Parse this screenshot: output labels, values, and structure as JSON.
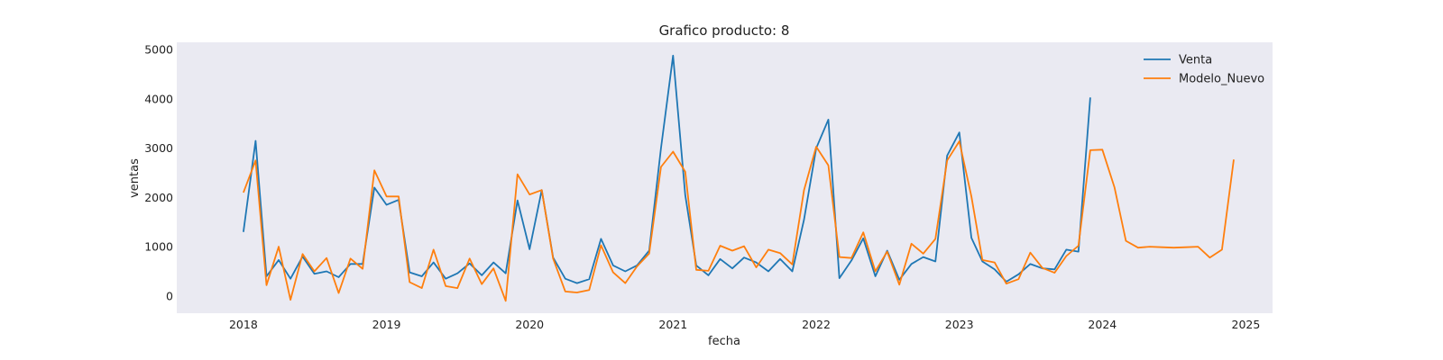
{
  "chart_data": {
    "type": "line",
    "title": "Grafico producto: 8",
    "xlabel": "fecha",
    "ylabel": "ventas",
    "xlim": [
      "2017-07-15",
      "2025-03-10"
    ],
    "ylim": [
      -350,
      5150
    ],
    "x_ticks": [
      "2018",
      "2019",
      "2020",
      "2021",
      "2022",
      "2023",
      "2024",
      "2025"
    ],
    "y_ticks": [
      0,
      1000,
      2000,
      3000,
      4000,
      5000
    ],
    "grid": false,
    "legend": "top-right",
    "background": "#eaeaf2",
    "series": [
      {
        "name": "Venta",
        "color": "#1f77b4",
        "start": "2018-01",
        "values": [
          1300,
          3150,
          400,
          730,
          350,
          800,
          450,
          500,
          380,
          650,
          650,
          2200,
          1850,
          1950,
          480,
          400,
          680,
          350,
          460,
          660,
          420,
          680,
          460,
          1940,
          950,
          2150,
          780,
          350,
          260,
          340,
          1160,
          620,
          500,
          620,
          920,
          3000,
          4880,
          2050,
          620,
          420,
          750,
          560,
          780,
          680,
          500,
          750,
          500,
          1550,
          3000,
          3580,
          360,
          720,
          1170,
          400,
          920,
          330,
          650,
          790,
          700,
          2850,
          3320,
          1180,
          700,
          540,
          290,
          440,
          650,
          560,
          540,
          940,
          900,
          4030
        ]
      },
      {
        "name": "Modelo_Nuevo",
        "color": "#ff7f0e",
        "start": "2018-01",
        "values": [
          2100,
          2750,
          220,
          1000,
          -80,
          850,
          500,
          770,
          60,
          760,
          550,
          2550,
          2020,
          2020,
          280,
          160,
          940,
          200,
          160,
          760,
          240,
          560,
          -100,
          2470,
          2060,
          2150,
          760,
          90,
          70,
          120,
          1030,
          480,
          260,
          600,
          860,
          2620,
          2930,
          2520,
          530,
          510,
          1020,
          920,
          1010,
          580,
          940,
          870,
          640,
          2150,
          3030,
          2650,
          790,
          770,
          1290,
          500,
          900,
          230,
          1060,
          860,
          1160,
          2750,
          3140,
          2020,
          730,
          680,
          250,
          340,
          880,
          570,
          470,
          810,
          1020,
          2960,
          2970,
          2200,
          1120,
          980,
          1000,
          990,
          980,
          990,
          1000,
          780,
          940,
          2770
        ]
      }
    ]
  }
}
